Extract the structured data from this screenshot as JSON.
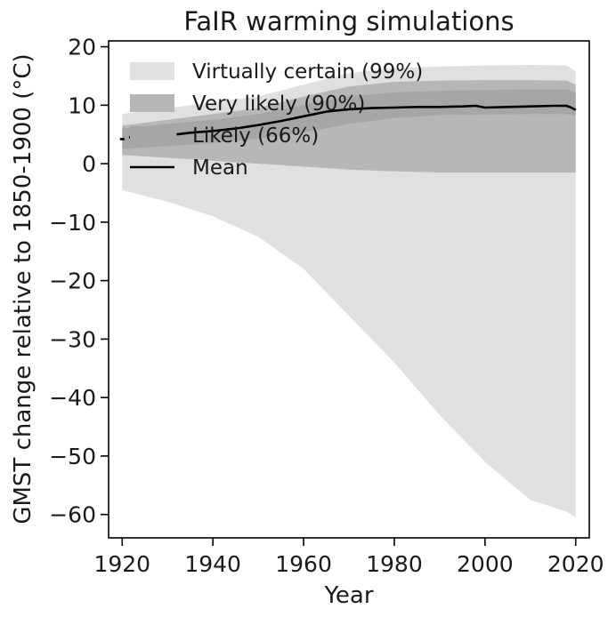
{
  "chart_data": {
    "type": "area",
    "title": "FaIR warming simulations",
    "xlabel": "Year",
    "ylabel": "GMST change relative to 1850-1900 (°C)",
    "xlim": [
      1917,
      2023
    ],
    "ylim": [
      -64,
      21
    ],
    "xticks": [
      1920,
      1940,
      1960,
      1980,
      2000,
      2020
    ],
    "yticks": [
      20,
      10,
      0,
      -10,
      -20,
      -30,
      -40,
      -50,
      -60
    ],
    "xtick_labels": [
      "1920",
      "1940",
      "1960",
      "1980",
      "2000",
      "2020"
    ],
    "ytick_labels": [
      "20",
      "10",
      "0",
      "−10",
      "−20",
      "−30",
      "−40",
      "−50",
      "−60"
    ],
    "grid": false,
    "legend_position": "top-left",
    "x": [
      1920,
      1930,
      1940,
      1950,
      1960,
      1970,
      1980,
      1990,
      2000,
      2010,
      2018,
      2020
    ],
    "bands": [
      {
        "name": "Virtually certain (99%)",
        "color": "#e0e0e0",
        "upper": [
          8.5,
          9.5,
          10.5,
          11.5,
          13.5,
          15.5,
          16.3,
          16.6,
          16.8,
          16.9,
          16.8,
          15.8
        ],
        "lower": [
          -4.5,
          -6.5,
          -9.0,
          -12.5,
          -18.0,
          -26.0,
          -34.0,
          -43.0,
          -51.0,
          -57.5,
          -59.5,
          -60.5
        ]
      },
      {
        "name": "Very likely (90%)",
        "color": "#b7b7b7",
        "upper": [
          6.5,
          7.5,
          8.5,
          9.5,
          11.5,
          13.2,
          14.0,
          14.2,
          14.3,
          14.3,
          14.2,
          13.5
        ],
        "lower": [
          1.5,
          1.0,
          0.5,
          0.0,
          -0.5,
          -1.0,
          -1.3,
          -1.5,
          -1.5,
          -1.5,
          -1.5,
          -1.5
        ]
      },
      {
        "name": "Likely (66%)",
        "color": "#a6a6a6",
        "upper": [
          6.0,
          6.8,
          7.5,
          8.5,
          10.0,
          11.5,
          12.2,
          12.5,
          12.6,
          12.7,
          12.7,
          12.2
        ],
        "lower": [
          2.5,
          3.0,
          3.5,
          4.3,
          5.3,
          6.8,
          7.8,
          8.3,
          8.4,
          8.5,
          8.5,
          8.2
        ]
      }
    ],
    "mean": {
      "name": "Mean",
      "color": "#000000",
      "segments": [
        {
          "x": [
            1919.5,
            1920.5
          ],
          "y": [
            4.2,
            4.2
          ]
        },
        {
          "x": [
            1921.5,
            1922.5
          ],
          "y": [
            4.5,
            4.5
          ]
        },
        {
          "x": [
            1932,
            1935,
            1940,
            1945,
            1950,
            1955,
            1960,
            1965,
            1970,
            1975,
            1980,
            1985,
            1990,
            1995,
            1998,
            2000,
            2005,
            2010,
            2015,
            2018,
            2019,
            2020
          ],
          "y": [
            5.0,
            5.3,
            5.6,
            6.0,
            6.6,
            7.3,
            8.1,
            8.9,
            9.3,
            9.5,
            9.6,
            9.7,
            9.7,
            9.8,
            9.9,
            9.6,
            9.7,
            9.8,
            9.9,
            9.9,
            9.6,
            9.2
          ]
        }
      ]
    }
  }
}
